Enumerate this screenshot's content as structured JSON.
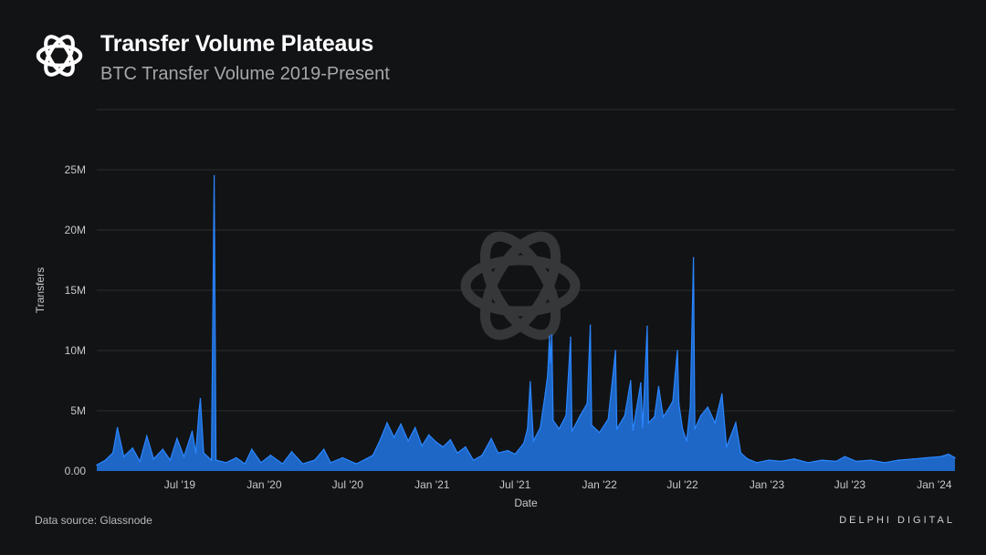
{
  "header": {
    "logo_icon": "flower-knot-logo-icon",
    "title": "Transfer Volume Plateaus",
    "subtitle": "BTC Transfer Volume 2019-Present"
  },
  "footer": {
    "source": "Data source: Glassnode",
    "brand": "DELPHI DIGITAL"
  },
  "colors": {
    "background": "#121315",
    "series": "#1f6fd6",
    "series_line": "#2a86ff",
    "grid": "#2b2d30",
    "text": "#c8c8ca",
    "watermark": "#3a3b3e"
  },
  "chart_data": {
    "type": "area",
    "title": "",
    "xlabel": "Date",
    "ylabel": "Transfers",
    "grid": true,
    "legend": "none",
    "x_range": [
      "2019-01-01",
      "2024-02-15"
    ],
    "ylim": [
      0,
      30000000
    ],
    "x_ticks": [
      {
        "date": "2019-07-01",
        "label": "Jul '19"
      },
      {
        "date": "2020-01-01",
        "label": "Jan '20"
      },
      {
        "date": "2020-07-01",
        "label": "Jul '20"
      },
      {
        "date": "2021-01-01",
        "label": "Jan '21"
      },
      {
        "date": "2021-07-01",
        "label": "Jul '21"
      },
      {
        "date": "2022-01-01",
        "label": "Jan '22"
      },
      {
        "date": "2022-07-01",
        "label": "Jul '22"
      },
      {
        "date": "2023-01-01",
        "label": "Jan '23"
      },
      {
        "date": "2023-07-01",
        "label": "Jul '23"
      },
      {
        "date": "2024-01-01",
        "label": "Jan '24"
      }
    ],
    "y_ticks": [
      {
        "value": 0,
        "label": "0.00"
      },
      {
        "value": 5000000,
        "label": "5M"
      },
      {
        "value": 10000000,
        "label": "10M"
      },
      {
        "value": 15000000,
        "label": "15M"
      },
      {
        "value": 20000000,
        "label": "20M"
      },
      {
        "value": 25000000,
        "label": "25M"
      },
      {
        "value": 30000000,
        "label": ""
      }
    ],
    "series": [
      {
        "color": "#1f6fd6",
        "points": [
          [
            "2019-01-01",
            500000
          ],
          [
            "2019-01-20",
            900000
          ],
          [
            "2019-02-05",
            1500000
          ],
          [
            "2019-02-15",
            3600000
          ],
          [
            "2019-03-01",
            1200000
          ],
          [
            "2019-03-20",
            1900000
          ],
          [
            "2019-04-05",
            800000
          ],
          [
            "2019-04-20",
            2900000
          ],
          [
            "2019-05-05",
            1000000
          ],
          [
            "2019-05-25",
            1800000
          ],
          [
            "2019-06-10",
            900000
          ],
          [
            "2019-06-25",
            2700000
          ],
          [
            "2019-07-10",
            1200000
          ],
          [
            "2019-07-28",
            3300000
          ],
          [
            "2019-08-05",
            1500000
          ],
          [
            "2019-08-12",
            5000000
          ],
          [
            "2019-08-15",
            6000000
          ],
          [
            "2019-08-22",
            1500000
          ],
          [
            "2019-09-08",
            900000
          ],
          [
            "2019-09-14",
            24500000
          ],
          [
            "2019-09-18",
            900000
          ],
          [
            "2019-10-10",
            700000
          ],
          [
            "2019-11-01",
            1100000
          ],
          [
            "2019-11-20",
            600000
          ],
          [
            "2019-12-05",
            1800000
          ],
          [
            "2019-12-25",
            700000
          ],
          [
            "2020-01-15",
            1300000
          ],
          [
            "2020-02-10",
            600000
          ],
          [
            "2020-03-01",
            1600000
          ],
          [
            "2020-03-25",
            600000
          ],
          [
            "2020-04-20",
            900000
          ],
          [
            "2020-05-10",
            1800000
          ],
          [
            "2020-05-25",
            700000
          ],
          [
            "2020-06-20",
            1100000
          ],
          [
            "2020-07-20",
            600000
          ],
          [
            "2020-08-10",
            1000000
          ],
          [
            "2020-08-25",
            1300000
          ],
          [
            "2020-09-10",
            2600000
          ],
          [
            "2020-09-25",
            4000000
          ],
          [
            "2020-10-10",
            2800000
          ],
          [
            "2020-10-25",
            3900000
          ],
          [
            "2020-11-10",
            2500000
          ],
          [
            "2020-11-25",
            3600000
          ],
          [
            "2020-12-10",
            2100000
          ],
          [
            "2020-12-25",
            3000000
          ],
          [
            "2021-01-10",
            2400000
          ],
          [
            "2021-01-25",
            2000000
          ],
          [
            "2021-02-10",
            2600000
          ],
          [
            "2021-02-25",
            1500000
          ],
          [
            "2021-03-15",
            2000000
          ],
          [
            "2021-04-01",
            900000
          ],
          [
            "2021-04-20",
            1300000
          ],
          [
            "2021-05-10",
            2700000
          ],
          [
            "2021-05-25",
            1500000
          ],
          [
            "2021-06-15",
            1700000
          ],
          [
            "2021-07-01",
            1400000
          ],
          [
            "2021-07-20",
            2300000
          ],
          [
            "2021-07-28",
            3500000
          ],
          [
            "2021-08-03",
            7400000
          ],
          [
            "2021-08-10",
            2500000
          ],
          [
            "2021-08-25",
            3600000
          ],
          [
            "2021-09-05",
            6500000
          ],
          [
            "2021-09-10",
            8000000
          ],
          [
            "2021-09-14",
            11200000
          ],
          [
            "2021-09-16",
            9000000
          ],
          [
            "2021-09-19",
            11300000
          ],
          [
            "2021-09-22",
            4200000
          ],
          [
            "2021-10-05",
            3500000
          ],
          [
            "2021-10-20",
            4600000
          ],
          [
            "2021-10-30",
            11100000
          ],
          [
            "2021-11-02",
            3300000
          ],
          [
            "2021-11-20",
            4600000
          ],
          [
            "2021-12-05",
            5600000
          ],
          [
            "2021-12-12",
            12100000
          ],
          [
            "2021-12-15",
            3800000
          ],
          [
            "2022-01-01",
            3200000
          ],
          [
            "2022-01-20",
            4300000
          ],
          [
            "2022-02-05",
            10000000
          ],
          [
            "2022-02-08",
            3500000
          ],
          [
            "2022-02-25",
            4600000
          ],
          [
            "2022-03-10",
            7500000
          ],
          [
            "2022-03-15",
            3400000
          ],
          [
            "2022-04-01",
            7300000
          ],
          [
            "2022-04-05",
            3600000
          ],
          [
            "2022-04-15",
            12000000
          ],
          [
            "2022-04-18",
            4000000
          ],
          [
            "2022-05-01",
            4500000
          ],
          [
            "2022-05-10",
            7000000
          ],
          [
            "2022-05-20",
            4500000
          ],
          [
            "2022-06-01",
            5200000
          ],
          [
            "2022-06-10",
            5800000
          ],
          [
            "2022-06-15",
            8000000
          ],
          [
            "2022-06-20",
            10000000
          ],
          [
            "2022-06-23",
            5600000
          ],
          [
            "2022-07-01",
            3500000
          ],
          [
            "2022-07-10",
            2500000
          ],
          [
            "2022-07-18",
            5400000
          ],
          [
            "2022-07-25",
            17700000
          ],
          [
            "2022-07-28",
            3500000
          ],
          [
            "2022-08-10",
            4600000
          ],
          [
            "2022-08-25",
            5300000
          ],
          [
            "2022-09-10",
            4000000
          ],
          [
            "2022-09-25",
            6400000
          ],
          [
            "2022-10-05",
            2000000
          ],
          [
            "2022-10-25",
            4000000
          ],
          [
            "2022-11-05",
            1500000
          ],
          [
            "2022-11-20",
            1000000
          ],
          [
            "2022-12-10",
            700000
          ],
          [
            "2023-01-05",
            900000
          ],
          [
            "2023-02-01",
            800000
          ],
          [
            "2023-03-01",
            1000000
          ],
          [
            "2023-04-01",
            700000
          ],
          [
            "2023-05-01",
            900000
          ],
          [
            "2023-06-01",
            800000
          ],
          [
            "2023-06-20",
            1200000
          ],
          [
            "2023-07-15",
            800000
          ],
          [
            "2023-08-15",
            900000
          ],
          [
            "2023-09-15",
            700000
          ],
          [
            "2023-10-15",
            900000
          ],
          [
            "2023-11-15",
            1000000
          ],
          [
            "2023-12-15",
            1100000
          ],
          [
            "2024-01-15",
            1200000
          ],
          [
            "2024-02-01",
            1400000
          ],
          [
            "2024-02-15",
            1100000
          ]
        ]
      }
    ]
  }
}
